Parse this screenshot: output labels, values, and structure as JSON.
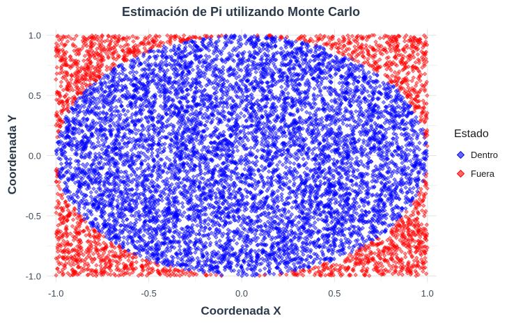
{
  "chart_data": {
    "type": "scatter",
    "title": "Estimación de Pi utilizando Monte Carlo",
    "xlabel": "Coordenada X",
    "ylabel": "Coordenada Y",
    "xlim": [
      -1.05,
      1.05
    ],
    "ylim": [
      -1.05,
      1.05
    ],
    "xticks": [
      -1.0,
      -0.5,
      0.0,
      0.5,
      1.0
    ],
    "yticks": [
      -1.0,
      -0.5,
      0.0,
      0.5,
      1.0
    ],
    "xtick_labels": [
      "-1.0",
      "-0.5",
      "0.0",
      "0.5",
      "1.0"
    ],
    "ytick_labels": [
      "-1.0",
      "-0.5",
      "0.0",
      "0.5",
      "1.0"
    ],
    "grid": true,
    "legend": {
      "title": "Estado",
      "placement": "right",
      "entries": [
        {
          "label": "Dentro",
          "color": "#0000ff"
        },
        {
          "label": "Fuera",
          "color": "#ff0000"
        }
      ]
    },
    "series": [
      {
        "name": "Dentro",
        "color": "#0000ff",
        "rule": "x^2 + y^2 <= 1"
      },
      {
        "name": "Fuera",
        "color": "#ff0000",
        "rule": "x^2 + y^2 > 1"
      }
    ],
    "points": {
      "count": 10000,
      "distribution": "uniform",
      "x_range": [
        -1,
        1
      ],
      "y_range": [
        -1,
        1
      ]
    }
  }
}
